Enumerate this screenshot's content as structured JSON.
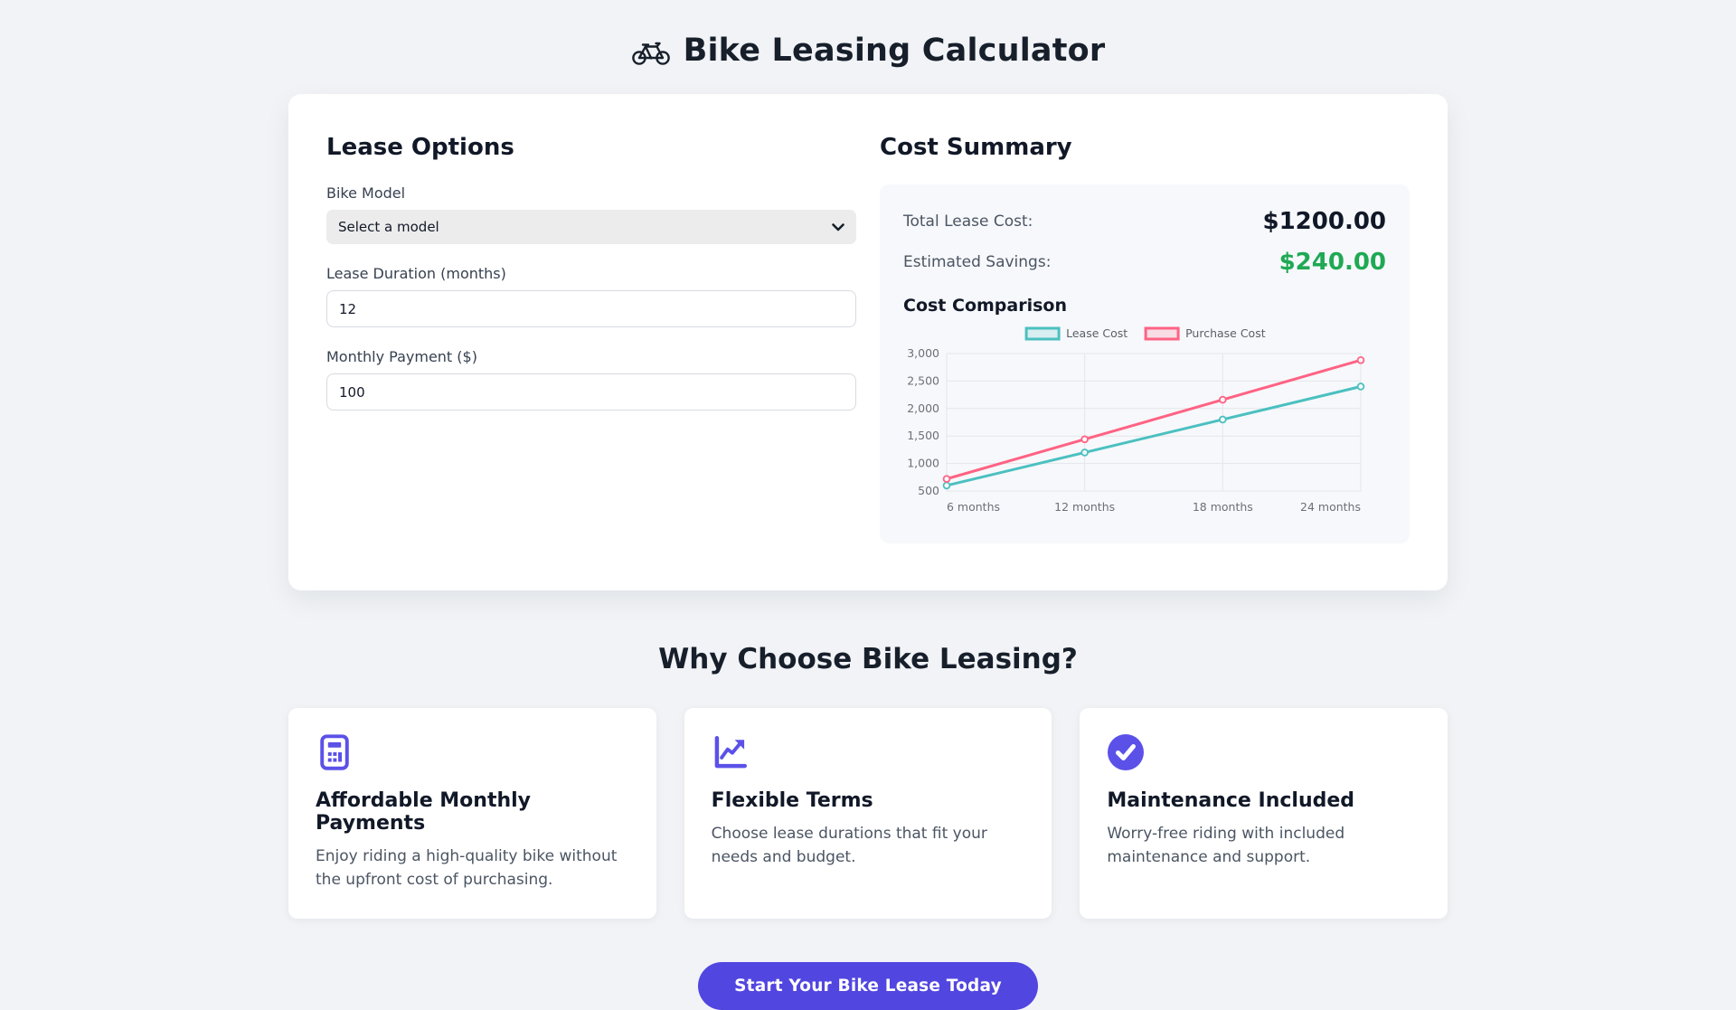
{
  "page": {
    "title": "Bike Leasing Calculator",
    "background_color": "#f1f3f6",
    "accent_color": "#5246e0",
    "icon_color": "#5b51e8"
  },
  "lease_options": {
    "heading": "Lease Options",
    "bike_model": {
      "label": "Bike Model",
      "selected_option": "Select a model"
    },
    "lease_duration": {
      "label": "Lease Duration (months)",
      "value": "12"
    },
    "monthly_payment": {
      "label": "Monthly Payment ($)",
      "value": "100"
    }
  },
  "cost_summary": {
    "heading": "Cost Summary",
    "total_label": "Total Lease Cost:",
    "total_value": "$1200.00",
    "savings_label": "Estimated Savings:",
    "savings_value": "$240.00",
    "savings_color": "#1fa954",
    "chart_heading": "Cost Comparison"
  },
  "chart_data": {
    "type": "line",
    "title": "Cost Comparison",
    "categories": [
      "6 months",
      "12 months",
      "18 months",
      "24 months"
    ],
    "series": [
      {
        "name": "Lease Cost",
        "values": [
          600,
          1200,
          1800,
          2400
        ],
        "color": "#4bc0c0"
      },
      {
        "name": "Purchase Cost",
        "values": [
          720,
          1440,
          2160,
          2880
        ],
        "color": "#ff6384"
      }
    ],
    "xlabel": "",
    "ylabel": "",
    "ylim": [
      500,
      3000
    ],
    "yticks": [
      500,
      1000,
      1500,
      2000,
      2500,
      3000
    ],
    "ytick_labels": [
      "500",
      "1,000",
      "1,500",
      "2,000",
      "2,500",
      "3,000"
    ],
    "grid": true,
    "legend_position": "top",
    "text_color": "#6b7077",
    "grid_color": "#e4e6e9"
  },
  "why_choose": {
    "heading": "Why Choose Bike Leasing?",
    "cards": [
      {
        "icon": "calculator-icon",
        "title": "Affordable Monthly Payments",
        "description": "Enjoy riding a high-quality bike without the upfront cost of purchasing."
      },
      {
        "icon": "chart-line-icon",
        "title": "Flexible Terms",
        "description": "Choose lease durations that fit your needs and budget."
      },
      {
        "icon": "check-circle-icon",
        "title": "Maintenance Included",
        "description": "Worry-free riding with included maintenance and support."
      }
    ]
  },
  "cta": {
    "label": "Start Your Bike Lease Today"
  }
}
